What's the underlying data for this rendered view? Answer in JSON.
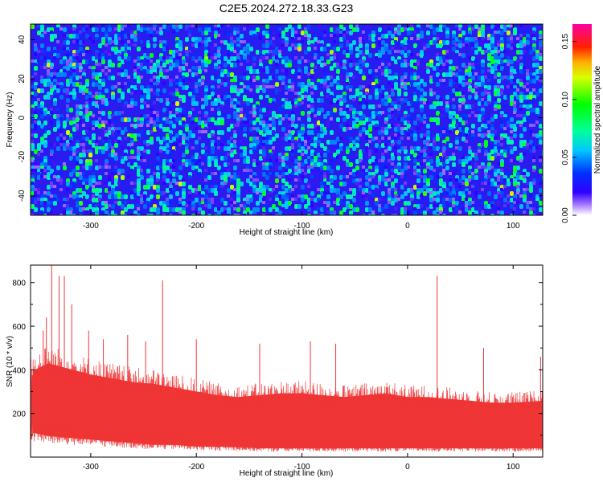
{
  "title": "C2E5.2024.272.18.33.G23",
  "chart_data": [
    {
      "type": "heatmap",
      "xlabel": "Height of straight line (km)",
      "ylabel": "Frequency (Hz)",
      "xlim": [
        -357,
        128
      ],
      "ylim": [
        -50,
        48
      ],
      "xticks": [
        -300,
        -200,
        -100,
        0,
        100
      ],
      "yticks": [
        -40,
        -20,
        0,
        20,
        40
      ],
      "colorbar": {
        "label": "Normalized spectral amplitude",
        "range": [
          0.0,
          0.165
        ],
        "ticks": [
          "0.00",
          "0.05",
          "0.10",
          "0.15"
        ],
        "colormap": [
          "#ffffff",
          "#6a00ff",
          "#0000ff",
          "#00c8ff",
          "#00ff80",
          "#00ff00",
          "#ffff00",
          "#ff8000",
          "#ff0000",
          "#ff00a0"
        ]
      },
      "description_values": {
        "background_level": 0.02,
        "typical_peak": 0.06,
        "max_peak": 0.12
      }
    },
    {
      "type": "line",
      "xlabel": "Height of straight line (km)",
      "ylabel": "SNR (10 * v/v)",
      "xlim": [
        -357,
        128
      ],
      "ylim": [
        0,
        880
      ],
      "xticks": [
        -300,
        -200,
        -100,
        0,
        100
      ],
      "yticks": [
        200,
        400,
        600,
        800
      ],
      "color": "#ef3535",
      "envelope": [
        {
          "x": -355,
          "lo": 70,
          "hi": 460
        },
        {
          "x": -340,
          "lo": 60,
          "hi": 500
        },
        {
          "x": -320,
          "lo": 55,
          "hi": 470
        },
        {
          "x": -300,
          "lo": 50,
          "hi": 440
        },
        {
          "x": -280,
          "lo": 45,
          "hi": 420
        },
        {
          "x": -260,
          "lo": 40,
          "hi": 400
        },
        {
          "x": -240,
          "lo": 35,
          "hi": 390
        },
        {
          "x": -220,
          "lo": 35,
          "hi": 370
        },
        {
          "x": -200,
          "lo": 30,
          "hi": 350
        },
        {
          "x": -180,
          "lo": 30,
          "hi": 330
        },
        {
          "x": -160,
          "lo": 28,
          "hi": 320
        },
        {
          "x": -140,
          "lo": 25,
          "hi": 330
        },
        {
          "x": -120,
          "lo": 25,
          "hi": 340
        },
        {
          "x": -100,
          "lo": 25,
          "hi": 340
        },
        {
          "x": -80,
          "lo": 25,
          "hi": 330
        },
        {
          "x": -60,
          "lo": 25,
          "hi": 320
        },
        {
          "x": -40,
          "lo": 25,
          "hi": 330
        },
        {
          "x": -20,
          "lo": 25,
          "hi": 340
        },
        {
          "x": 0,
          "lo": 25,
          "hi": 320
        },
        {
          "x": 20,
          "lo": 25,
          "hi": 320
        },
        {
          "x": 40,
          "lo": 25,
          "hi": 310
        },
        {
          "x": 60,
          "lo": 25,
          "hi": 300
        },
        {
          "x": 80,
          "lo": 25,
          "hi": 290
        },
        {
          "x": 100,
          "lo": 25,
          "hi": 290
        },
        {
          "x": 128,
          "lo": 25,
          "hi": 300
        }
      ],
      "spikes": [
        {
          "x": -345,
          "y": 580
        },
        {
          "x": -342,
          "y": 640
        },
        {
          "x": -337,
          "y": 880
        },
        {
          "x": -330,
          "y": 830
        },
        {
          "x": -325,
          "y": 830
        },
        {
          "x": -318,
          "y": 700
        },
        {
          "x": -302,
          "y": 580
        },
        {
          "x": -288,
          "y": 540
        },
        {
          "x": -265,
          "y": 560
        },
        {
          "x": -248,
          "y": 530
        },
        {
          "x": -232,
          "y": 810
        },
        {
          "x": -200,
          "y": 540
        },
        {
          "x": -140,
          "y": 520
        },
        {
          "x": -92,
          "y": 530
        },
        {
          "x": -68,
          "y": 520
        },
        {
          "x": 28,
          "y": 830
        },
        {
          "x": 72,
          "y": 500
        },
        {
          "x": 126,
          "y": 460
        }
      ]
    }
  ]
}
